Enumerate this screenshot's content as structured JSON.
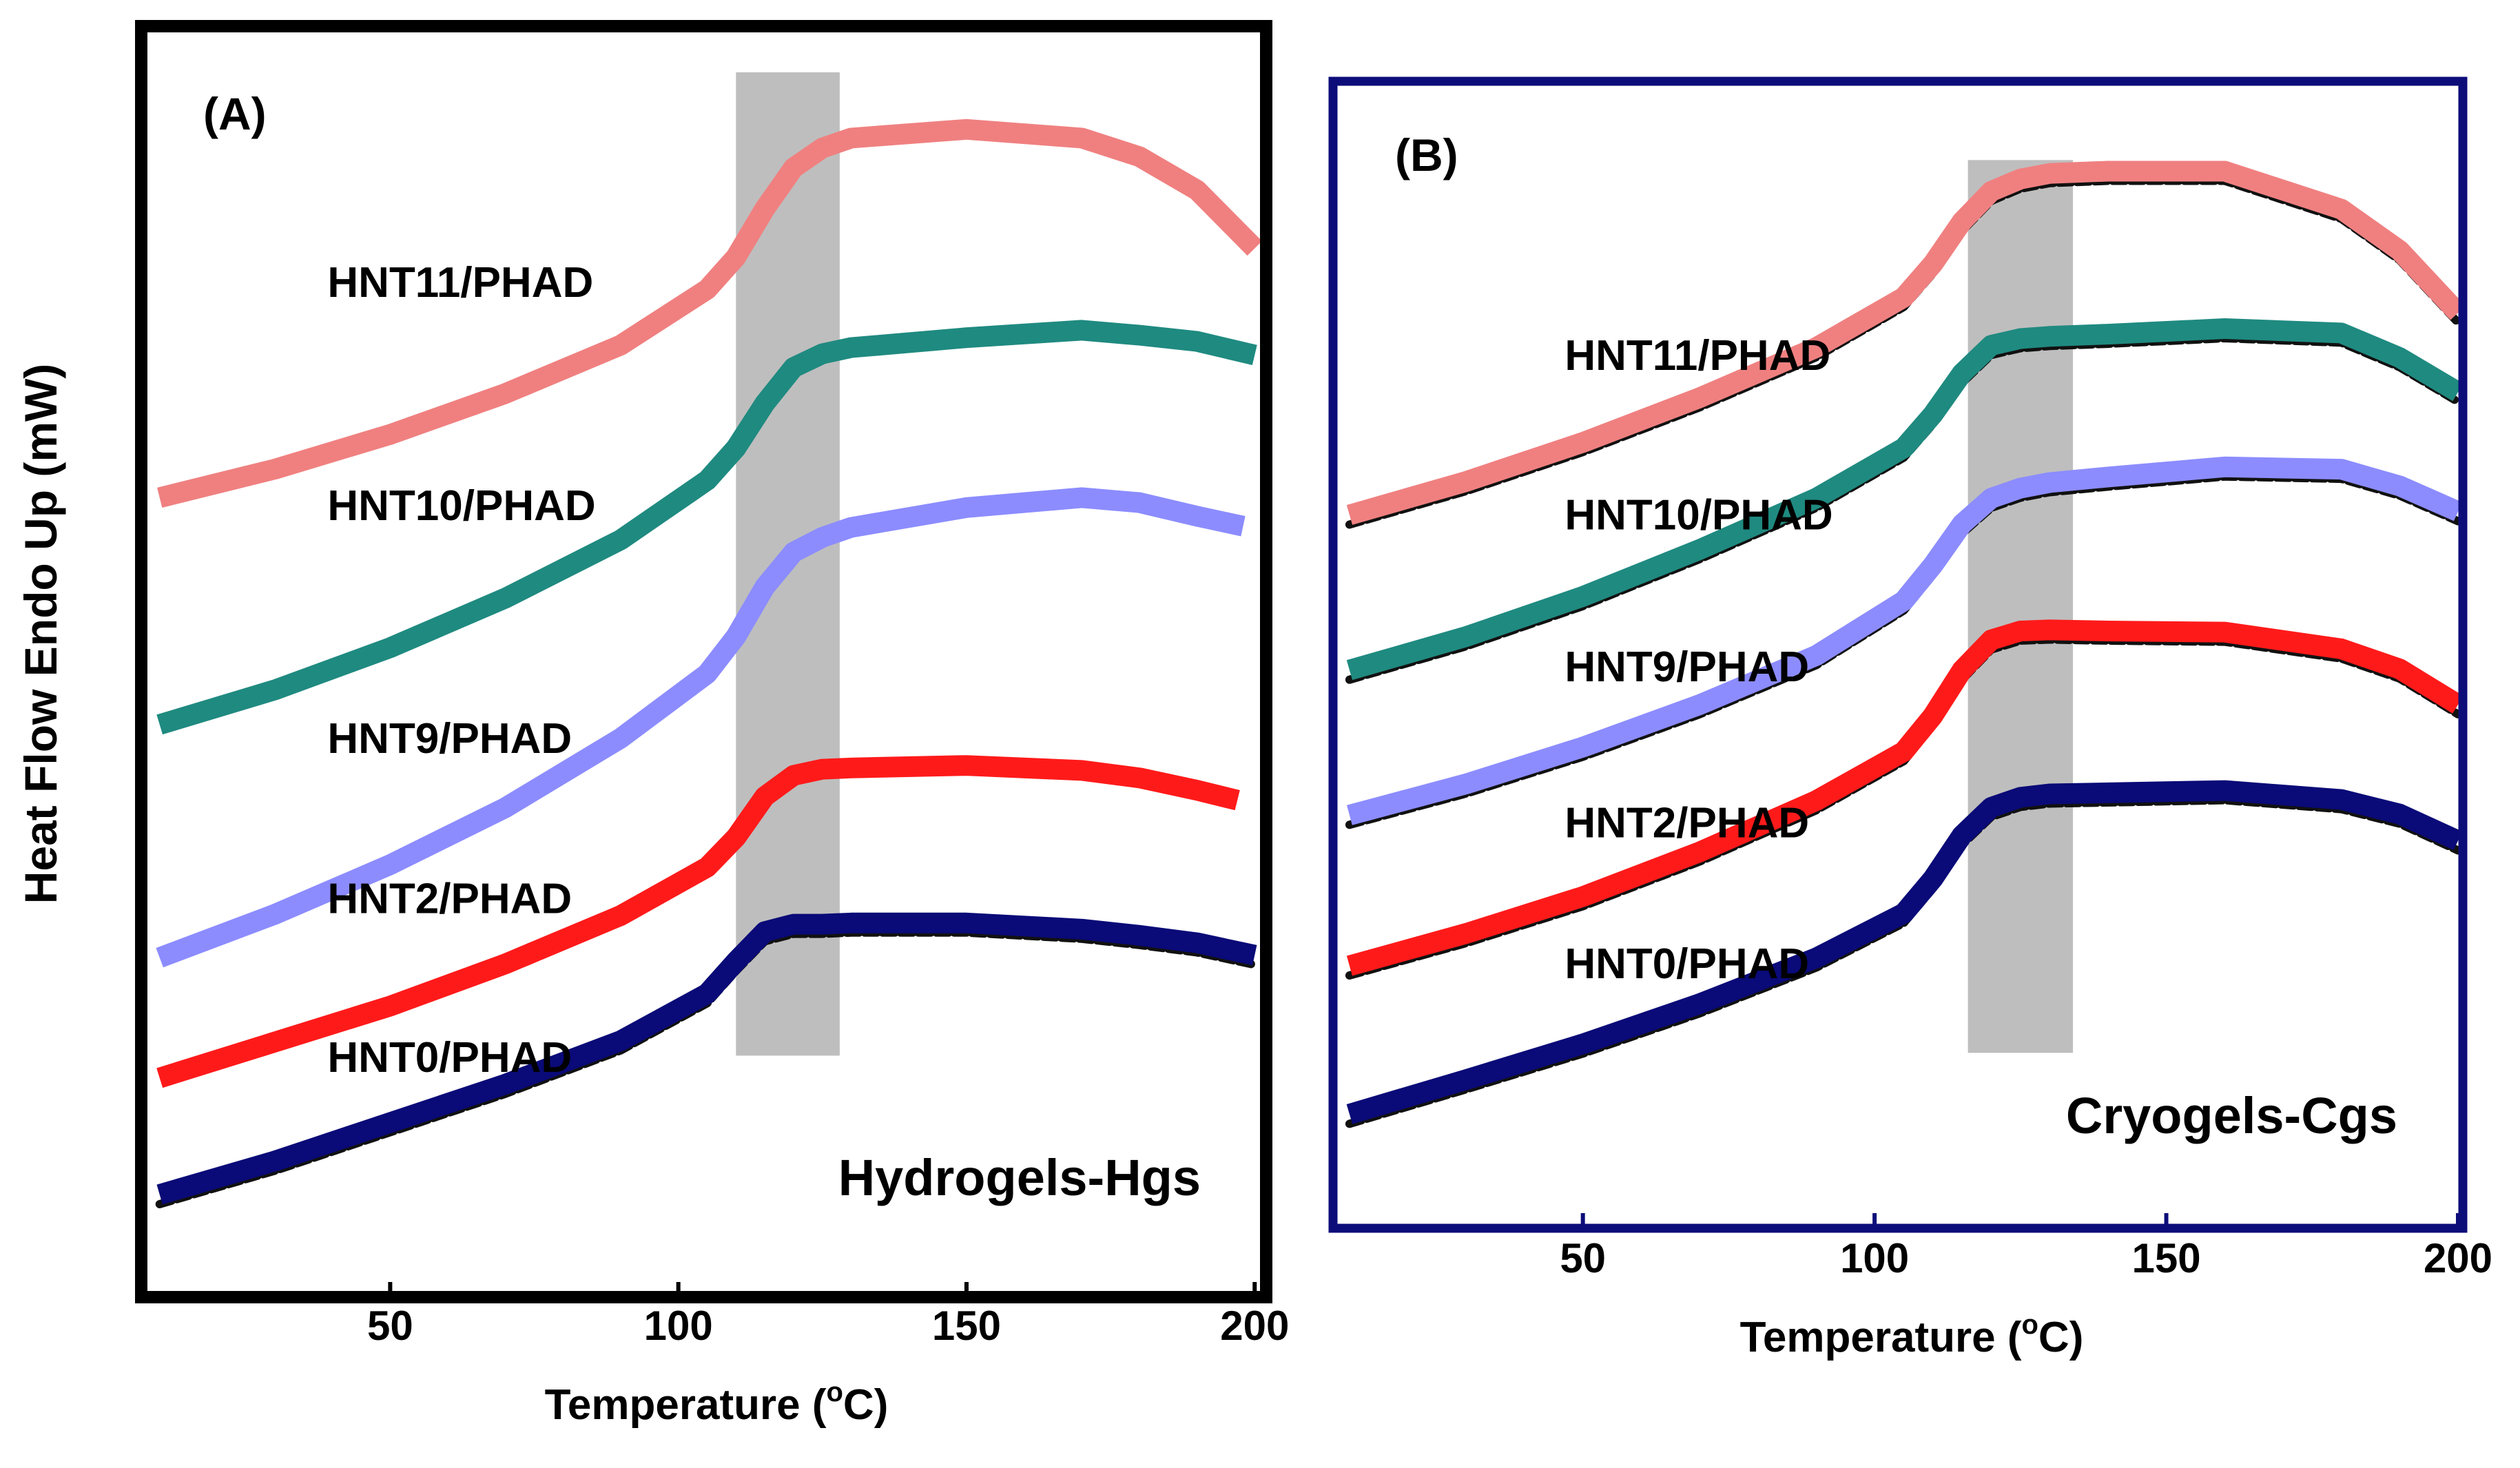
{
  "figure": {
    "y_axis_label": "Heat Flow Endo Up (mW)"
  },
  "chart_data": [
    {
      "type": "line",
      "panel_label": "(A)",
      "annotation": "Hydrogels-Hgs",
      "xlabel": "Temperature (",
      "xlabel_sup": "o",
      "xlabel_end": "C)",
      "ylabel": "Heat Flow Endo Up (mW)",
      "xlim": [
        8,
        202
      ],
      "ylim": [
        0,
        100
      ],
      "x_ticks": [
        50,
        100,
        150,
        200
      ],
      "x_tick_labels": [
        "50",
        "100",
        "150",
        "200"
      ],
      "highlight_band": {
        "x_range": [
          110,
          128
        ],
        "y_range": [
          18.2,
          97.5
        ],
        "color": "#bebebe"
      },
      "frame_color": "#000000",
      "series": [
        {
          "name": "HNT11/PHAD",
          "color": "#f08080",
          "label_at": [
            20,
            79.4
          ],
          "x": [
            10,
            30,
            50,
            70,
            90,
            105,
            110,
            115,
            120,
            125,
            130,
            150,
            170,
            180,
            190,
            200
          ],
          "y": [
            63.2,
            65.5,
            68.3,
            71.6,
            75.5,
            80.0,
            82.6,
            86.5,
            89.8,
            91.4,
            92.2,
            92.9,
            92.2,
            90.7,
            88.0,
            83.3
          ],
          "shadow": false
        },
        {
          "name": "HNT10/PHAD",
          "color": "#1f8a80",
          "label_at": [
            20,
            61.4
          ],
          "x": [
            10,
            30,
            50,
            70,
            90,
            105,
            110,
            115,
            120,
            125,
            130,
            150,
            170,
            180,
            190,
            200
          ],
          "y": [
            44.9,
            47.7,
            51.1,
            55.1,
            59.8,
            64.6,
            67.2,
            70.8,
            73.7,
            74.8,
            75.3,
            76.1,
            76.7,
            76.3,
            75.8,
            74.7
          ],
          "shadow": false
        },
        {
          "name": "HNT9/PHAD",
          "color": "#8c8cff",
          "label_at": [
            20,
            42.6
          ],
          "x": [
            10,
            30,
            50,
            70,
            90,
            105,
            110,
            115,
            120,
            125,
            130,
            150,
            170,
            180,
            190,
            198
          ],
          "y": [
            26.1,
            29.6,
            33.6,
            38.2,
            43.8,
            49.0,
            52.0,
            56.0,
            58.8,
            60.0,
            60.8,
            62.4,
            63.2,
            62.8,
            61.7,
            60.9
          ],
          "shadow": false
        },
        {
          "name": "HNT2/PHAD",
          "color": "#ff1a1a",
          "label_at": [
            20,
            29.7
          ],
          "x": [
            10,
            30,
            50,
            70,
            90,
            105,
            110,
            115,
            120,
            125,
            130,
            150,
            170,
            180,
            190,
            197
          ],
          "y": [
            16.4,
            19.3,
            22.2,
            25.6,
            29.5,
            33.4,
            35.8,
            39.1,
            40.8,
            41.3,
            41.4,
            41.6,
            41.2,
            40.6,
            39.6,
            38.8
          ],
          "shadow": false
        },
        {
          "name": "HNT0/PHAD",
          "color": "#0a0a78",
          "label_at": [
            20,
            16.9
          ],
          "x": [
            10,
            30,
            50,
            70,
            90,
            105,
            110,
            115,
            120,
            125,
            130,
            150,
            170,
            180,
            190,
            200
          ],
          "y": [
            7.0,
            9.7,
            12.8,
            15.9,
            19.4,
            23.2,
            25.8,
            28.2,
            28.8,
            28.8,
            28.9,
            28.9,
            28.4,
            27.9,
            27.3,
            26.3
          ],
          "shadow": true
        }
      ]
    },
    {
      "type": "line",
      "panel_label": "(B)",
      "annotation": "Cryogels-Cgs",
      "xlabel": "Temperature (",
      "xlabel_sup": "o",
      "xlabel_end": "C)",
      "ylabel": "Heat Flow Endo Up (mW)",
      "xlim": [
        8,
        200
      ],
      "ylim": [
        0,
        100
      ],
      "x_ticks": [
        50,
        100,
        150,
        200
      ],
      "x_tick_labels": [
        "50",
        "100",
        "150",
        "200"
      ],
      "highlight_band": {
        "x_range": [
          116,
          134
        ],
        "y_range": [
          14.3,
          94.3
        ],
        "color": "#bebebe"
      },
      "frame_color": "#0d0d7a",
      "series": [
        {
          "name": "HNT11/PHAD",
          "color": "#f08080",
          "label_at": [
            28,
            75.5
          ],
          "x": [
            10,
            30,
            50,
            70,
            90,
            105,
            110,
            115,
            120,
            125,
            130,
            140,
            160,
            180,
            190,
            200
          ],
          "y": [
            62.5,
            65.5,
            69.0,
            73.0,
            77.5,
            82.0,
            85.0,
            88.8,
            91.5,
            92.6,
            93.1,
            93.3,
            93.3,
            89.9,
            86.2,
            80.6
          ],
          "shadow": true
        },
        {
          "name": "HNT10/PHAD",
          "color": "#1f8a80",
          "label_at": [
            28,
            61.2
          ],
          "x": [
            10,
            30,
            50,
            70,
            90,
            105,
            110,
            115,
            120,
            125,
            130,
            140,
            160,
            180,
            190,
            200
          ],
          "y": [
            48.6,
            51.6,
            55.2,
            59.4,
            64.0,
            68.5,
            71.5,
            75.2,
            77.7,
            78.3,
            78.5,
            78.7,
            79.2,
            78.8,
            76.6,
            73.5
          ],
          "shadow": true
        },
        {
          "name": "HNT9/PHAD",
          "color": "#8c8cff",
          "label_at": [
            28,
            47.6
          ],
          "x": [
            10,
            30,
            50,
            70,
            90,
            105,
            110,
            115,
            120,
            125,
            130,
            140,
            160,
            180,
            190,
            200
          ],
          "y": [
            35.6,
            38.4,
            41.7,
            45.5,
            49.9,
            54.8,
            58.0,
            61.7,
            64.0,
            64.9,
            65.4,
            65.9,
            66.8,
            66.6,
            65.1,
            62.8
          ],
          "shadow": true
        },
        {
          "name": "HNT2/PHAD",
          "color": "#ff1a1a",
          "label_at": [
            28,
            33.6
          ],
          "x": [
            10,
            30,
            50,
            70,
            90,
            105,
            110,
            115,
            120,
            125,
            130,
            140,
            160,
            180,
            190,
            200
          ],
          "y": [
            22.1,
            25.0,
            28.3,
            32.3,
            36.9,
            41.3,
            44.5,
            48.6,
            51.3,
            52.1,
            52.2,
            52.1,
            52.0,
            50.5,
            48.7,
            45.5
          ],
          "shadow": true
        },
        {
          "name": "HNT0/PHAD",
          "color": "#0a0a78",
          "label_at": [
            28,
            21.0
          ],
          "x": [
            10,
            30,
            50,
            70,
            90,
            105,
            110,
            115,
            120,
            125,
            130,
            140,
            160,
            180,
            190,
            200
          ],
          "y": [
            8.8,
            11.9,
            15.1,
            18.7,
            22.8,
            26.8,
            29.9,
            33.8,
            36.3,
            37.2,
            37.5,
            37.6,
            37.8,
            37.0,
            35.7,
            33.3
          ],
          "shadow": true
        }
      ]
    }
  ]
}
